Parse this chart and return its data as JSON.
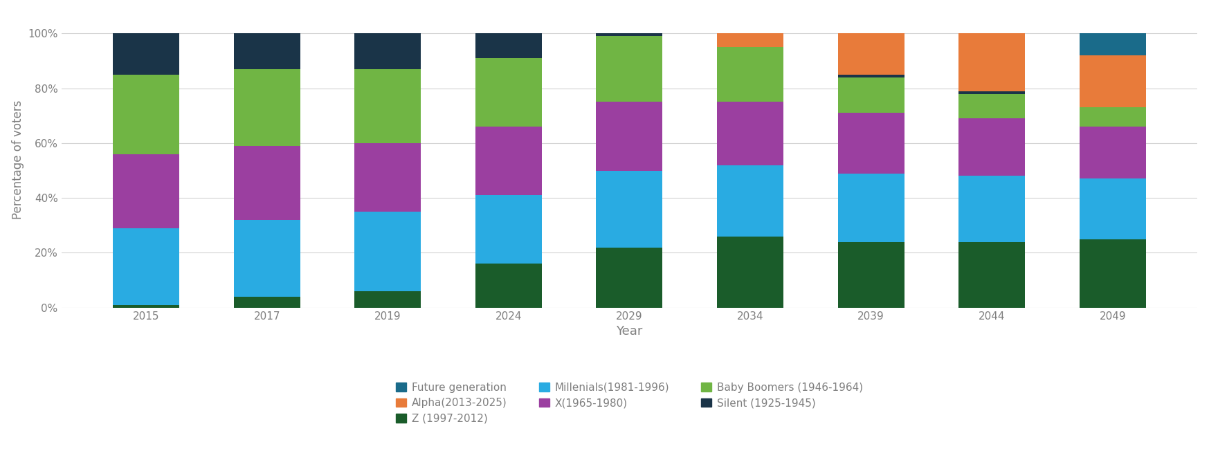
{
  "years": [
    "2015",
    "2017",
    "2019",
    "2024",
    "2029",
    "2034",
    "2039",
    "2044",
    "2049"
  ],
  "generations": [
    "Future generation",
    "Alpha(2013-2025)",
    "Z (1997-2012)",
    "Millenials(1981-1996)",
    "X(1965-1980)",
    "Baby Boomers (1946-1964)",
    "Silent (1925-1945)"
  ],
  "colors": [
    "#1a6b8a",
    "#e87b3a",
    "#1a5c2a",
    "#29abe2",
    "#9b3fa0",
    "#70b544",
    "#1a3448"
  ],
  "stack_order": [
    "Millenials(1981-1996)",
    "X(1965-1980)",
    "Baby Boomers (1946-1964)",
    "Silent (1925-1945)",
    "Z (1997-2012)",
    "Alpha(2013-2025)",
    "Future generation"
  ],
  "data": {
    "Future generation": [
      0,
      0,
      0,
      0,
      0,
      0,
      0,
      0,
      8
    ],
    "Alpha(2013-2025)": [
      0,
      0,
      0,
      0,
      0,
      5,
      15,
      21,
      19
    ],
    "Z (1997-2012)": [
      1,
      4,
      6,
      16,
      22,
      26,
      24,
      24,
      25
    ],
    "Millenials(1981-1996)": [
      28,
      28,
      29,
      25,
      28,
      26,
      25,
      24,
      22
    ],
    "X(1965-1980)": [
      27,
      27,
      25,
      25,
      25,
      23,
      22,
      21,
      19
    ],
    "Baby Boomers (1946-1964)": [
      29,
      28,
      27,
      25,
      24,
      20,
      13,
      9,
      7
    ],
    "Silent (1925-1945)": [
      15,
      13,
      13,
      9,
      1,
      0,
      1,
      1,
      0
    ]
  },
  "color_map": {
    "Future generation": "#1a6b8a",
    "Alpha(2013-2025)": "#e87b3a",
    "Z (1997-2012)": "#1a5c2a",
    "Millenials(1981-1996)": "#29abe2",
    "X(1965-1980)": "#9b3fa0",
    "Baby Boomers (1946-1964)": "#70b544",
    "Silent (1925-1945)": "#1a3448"
  },
  "ylabel": "Percentage of voters",
  "xlabel": "Year",
  "ytick_labels": [
    "0%",
    "20%",
    "40%",
    "60%",
    "80%",
    "100%"
  ],
  "yticks": [
    0,
    20,
    40,
    60,
    80,
    100
  ],
  "figsize": [
    17.47,
    6.52
  ],
  "dpi": 100,
  "bar_width": 0.55,
  "background_color": "#ffffff",
  "grid_color": "#d3d3d3",
  "text_color": "#7f7f7f"
}
